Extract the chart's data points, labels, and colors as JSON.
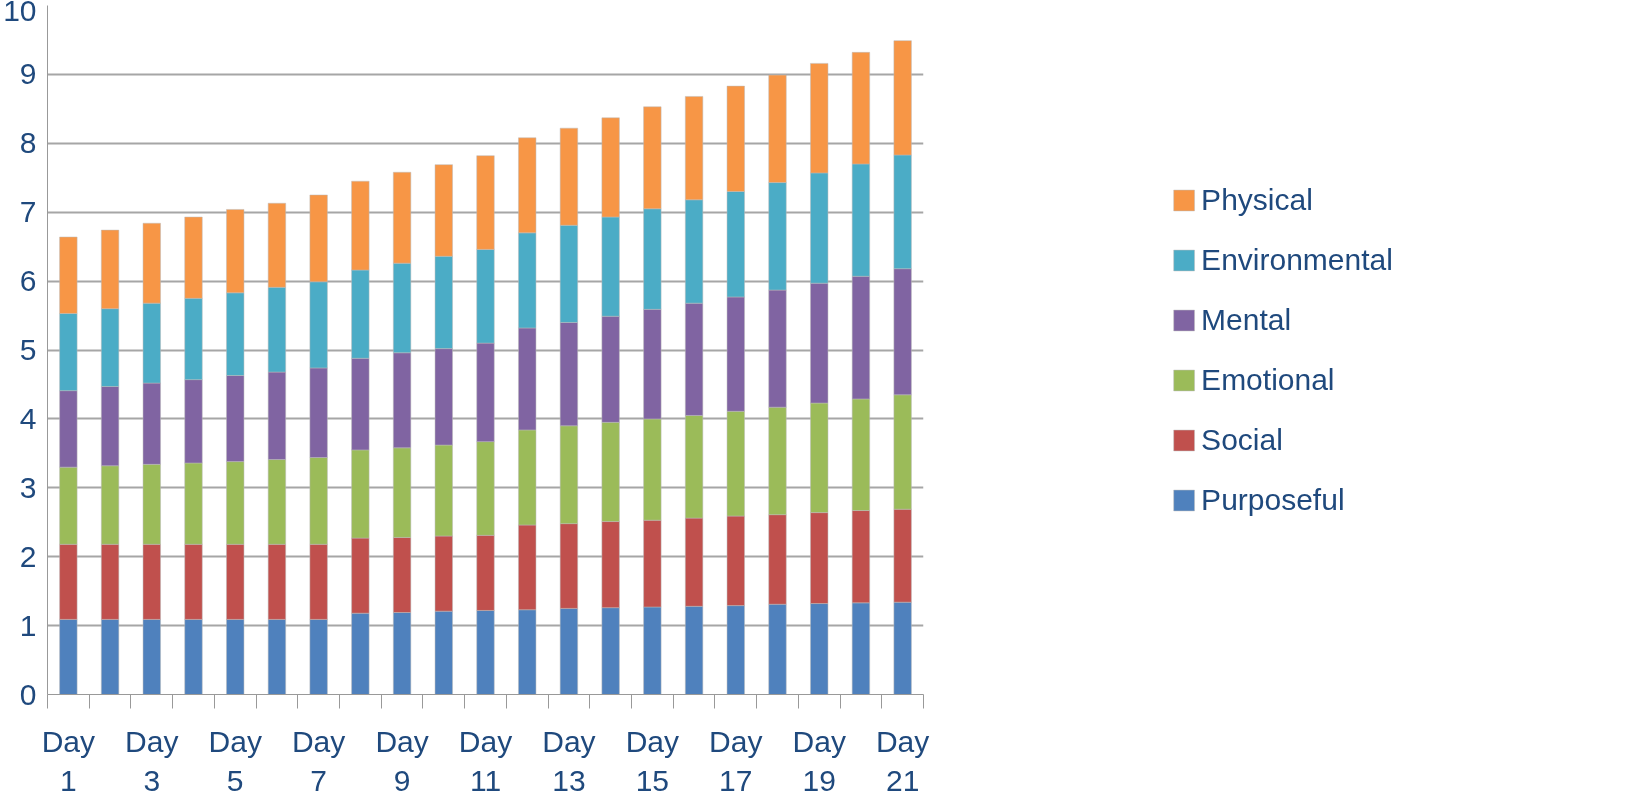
{
  "chart_data": {
    "type": "bar",
    "stacked": true,
    "categories": [
      "Day 1",
      null,
      "Day 3",
      null,
      "Day 5",
      null,
      "Day 7",
      null,
      "Day 9",
      null,
      "Day 11",
      null,
      "Day 13",
      null,
      "Day 15",
      null,
      "Day 17",
      null,
      "Day 19",
      null,
      "Day 21"
    ],
    "series": [
      {
        "name": "Purposeful",
        "color": "#4f81bd",
        "values": [
          1.09,
          1.09,
          1.09,
          1.09,
          1.09,
          1.09,
          1.09,
          1.18,
          1.19,
          1.21,
          1.22,
          1.23,
          1.25,
          1.26,
          1.27,
          1.28,
          1.29,
          1.31,
          1.32,
          1.33,
          1.34
        ]
      },
      {
        "name": "Social",
        "color": "#c0504d",
        "values": [
          1.09,
          1.09,
          1.09,
          1.09,
          1.09,
          1.09,
          1.09,
          1.09,
          1.09,
          1.09,
          1.09,
          1.23,
          1.23,
          1.25,
          1.26,
          1.28,
          1.3,
          1.3,
          1.32,
          1.34,
          1.35
        ]
      },
      {
        "name": "Emotional",
        "color": "#9bbb59",
        "values": [
          1.12,
          1.14,
          1.16,
          1.18,
          1.2,
          1.23,
          1.26,
          1.28,
          1.3,
          1.32,
          1.36,
          1.38,
          1.42,
          1.44,
          1.47,
          1.49,
          1.52,
          1.56,
          1.59,
          1.62,
          1.66
        ]
      },
      {
        "name": "Mental",
        "color": "#8064a2",
        "values": [
          1.11,
          1.15,
          1.18,
          1.21,
          1.25,
          1.27,
          1.3,
          1.33,
          1.38,
          1.4,
          1.43,
          1.48,
          1.5,
          1.54,
          1.59,
          1.63,
          1.66,
          1.7,
          1.74,
          1.78,
          1.83
        ]
      },
      {
        "name": "Environmental",
        "color": "#4bacc6",
        "values": [
          1.12,
          1.13,
          1.16,
          1.18,
          1.2,
          1.23,
          1.25,
          1.28,
          1.3,
          1.34,
          1.36,
          1.38,
          1.41,
          1.44,
          1.46,
          1.5,
          1.53,
          1.56,
          1.6,
          1.63,
          1.65
        ]
      },
      {
        "name": "Physical",
        "color": "#f79646",
        "values": [
          1.11,
          1.14,
          1.16,
          1.18,
          1.21,
          1.22,
          1.26,
          1.29,
          1.32,
          1.33,
          1.36,
          1.38,
          1.41,
          1.44,
          1.48,
          1.5,
          1.53,
          1.56,
          1.59,
          1.62,
          1.66
        ]
      }
    ],
    "ylim": [
      0,
      10
    ],
    "yticks": [
      0,
      1,
      2,
      3,
      4,
      5,
      6,
      7,
      8,
      9,
      10
    ],
    "grid": "y",
    "legend": "right"
  }
}
